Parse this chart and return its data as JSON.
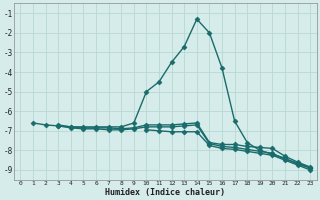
{
  "xlabel": "Humidex (Indice chaleur)",
  "xlim": [
    -0.5,
    23.5
  ],
  "ylim": [
    -9.5,
    -0.5
  ],
  "xticks": [
    0,
    1,
    2,
    3,
    4,
    5,
    6,
    7,
    8,
    9,
    10,
    11,
    12,
    13,
    14,
    15,
    16,
    17,
    18,
    19,
    20,
    21,
    22,
    23
  ],
  "yticks": [
    -9,
    -8,
    -7,
    -6,
    -5,
    -4,
    -3,
    -2,
    -1
  ],
  "bg_color": "#d5ecea",
  "grid_color": "#b8d8d4",
  "line_color": "#1a6b6b",
  "line_width": 1.0,
  "marker": "D",
  "marker_size": 2.5,
  "series": [
    [
      null,
      -6.6,
      -6.7,
      -6.75,
      -6.8,
      -6.8,
      -6.8,
      -6.8,
      -6.8,
      -6.6,
      -5.0,
      -4.5,
      -3.5,
      -2.7,
      -1.3,
      -2.0,
      -3.8,
      -6.5,
      -7.6,
      -8.0,
      -8.2,
      -8.4,
      -8.7,
      -8.9
    ],
    [
      null,
      null,
      null,
      -6.7,
      -6.8,
      -6.85,
      -6.85,
      -6.85,
      -6.9,
      -6.85,
      -6.7,
      -6.7,
      -6.7,
      -6.65,
      -6.6,
      -7.6,
      -7.7,
      -7.7,
      -7.8,
      -7.85,
      -7.9,
      -8.3,
      -8.6,
      -8.85
    ],
    [
      null,
      null,
      null,
      -6.75,
      -6.85,
      -6.9,
      -6.9,
      -6.95,
      -6.95,
      -6.9,
      -6.8,
      -6.8,
      -6.8,
      -6.75,
      -6.7,
      -7.65,
      -7.8,
      -7.85,
      -7.95,
      -8.05,
      -8.15,
      -8.45,
      -8.65,
      -8.9
    ],
    [
      null,
      null,
      null,
      null,
      null,
      null,
      null,
      null,
      null,
      null,
      -6.95,
      -7.0,
      -7.05,
      -7.05,
      -7.05,
      -7.75,
      -7.9,
      -7.95,
      -8.05,
      -8.15,
      -8.25,
      -8.5,
      -8.75,
      -9.0
    ]
  ]
}
